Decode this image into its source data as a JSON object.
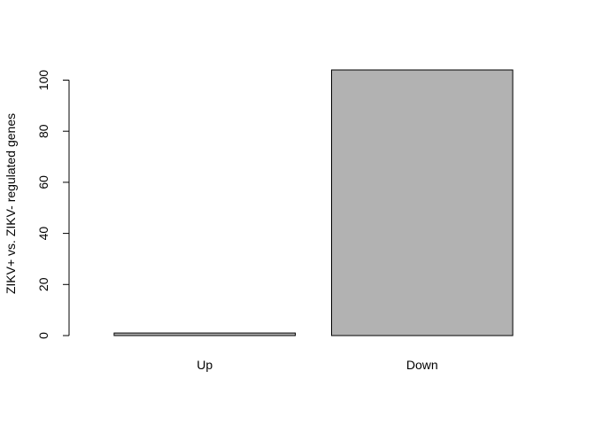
{
  "chart_data": {
    "type": "bar",
    "categories": [
      "Up",
      "Down"
    ],
    "values": [
      1,
      104
    ],
    "title": "",
    "xlabel": "",
    "ylabel": "ZIKV+ vs. ZIKV- regulated genes",
    "ylim": [
      0,
      104
    ],
    "yticks": [
      0,
      20,
      40,
      60,
      80,
      100
    ],
    "grid": false,
    "bar_color": "#b2b2b2",
    "bar_border_color": "#000000"
  }
}
